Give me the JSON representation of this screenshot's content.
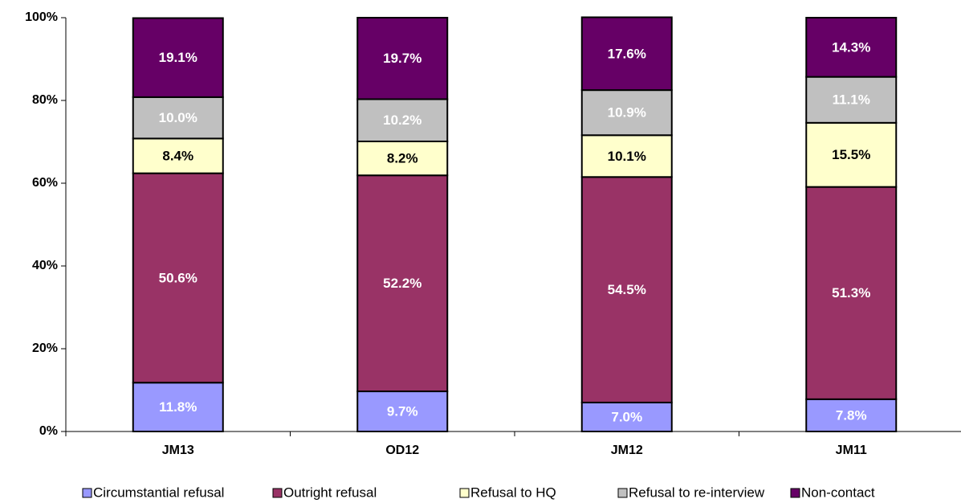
{
  "chart_data": {
    "type": "stacked_bar",
    "categories": [
      "JM13",
      "OD12",
      "JM12",
      "JM11"
    ],
    "series": [
      {
        "name": "Circumstantial refusal",
        "color": "#9999FF",
        "values": [
          11.8,
          9.7,
          7.0,
          7.8
        ],
        "value_labels": [
          "11.8%",
          "9.7%",
          "7.0%",
          "7.8%"
        ]
      },
      {
        "name": "Outright refusal",
        "color": "#993366",
        "values": [
          50.6,
          52.2,
          54.5,
          51.3
        ],
        "value_labels": [
          "50.6%",
          "52.2%",
          "54.5%",
          "51.3%"
        ]
      },
      {
        "name": "Refusal to HQ",
        "color": "#FFFFCC",
        "values": [
          8.4,
          8.2,
          10.1,
          15.5
        ],
        "value_labels": [
          "8.4%",
          "8.2%",
          "10.1%",
          "15.5%"
        ]
      },
      {
        "name": "Refusal to re-interview",
        "color": "#C0C0C0",
        "values": [
          10.0,
          10.2,
          10.9,
          11.1
        ],
        "value_labels": [
          "10.0%",
          "10.2%",
          "10.9%",
          "11.1%"
        ]
      },
      {
        "name": "Non-contact",
        "color": "#660066",
        "values": [
          19.1,
          19.7,
          17.6,
          14.3
        ],
        "value_labels": [
          "19.1%",
          "19.7%",
          "17.6%",
          "14.3%"
        ]
      }
    ],
    "ylim": [
      0,
      100
    ],
    "yticks": [
      {
        "value": 0,
        "label": "0%"
      },
      {
        "value": 20,
        "label": "20%"
      },
      {
        "value": 40,
        "label": "40%"
      },
      {
        "value": 60,
        "label": "60%"
      },
      {
        "value": 80,
        "label": "80%"
      },
      {
        "value": 100,
        "label": "100%"
      }
    ],
    "legend": "bottom"
  }
}
